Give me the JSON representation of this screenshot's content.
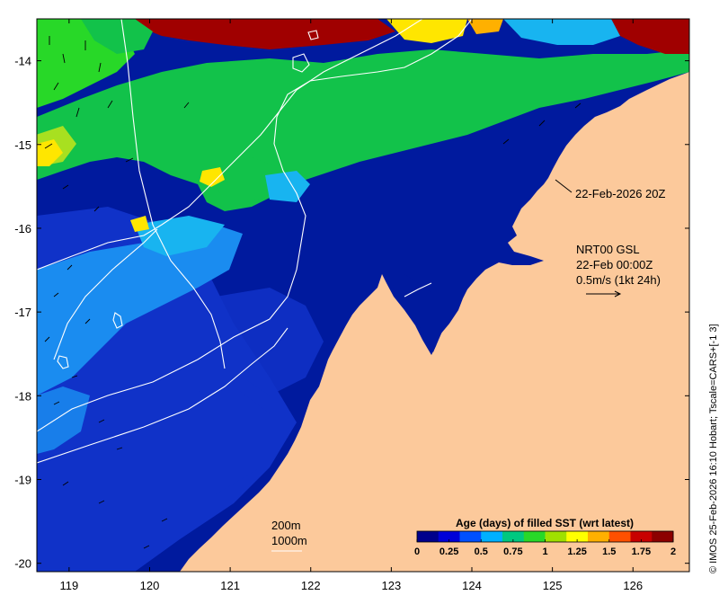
{
  "axes": {
    "x_ticks": [
      "119",
      "120",
      "121",
      "122",
      "123",
      "124",
      "125",
      "126"
    ],
    "x_tick_values": [
      119,
      120,
      121,
      122,
      123,
      124,
      125,
      126
    ],
    "y_ticks": [
      "-14",
      "-15",
      "-16",
      "-17",
      "-18",
      "-19",
      "-20"
    ],
    "y_tick_values": [
      -14,
      -15,
      -16,
      -17,
      -18,
      -19,
      -20
    ],
    "xlim": [
      118.6,
      126.7
    ],
    "ylim": [
      -20.1,
      -13.5
    ]
  },
  "annotations": {
    "timestamp": "22-Feb-2026 20Z",
    "current_title": "NRT00 GSL",
    "current_date": "22-Feb 00:00Z",
    "current_scale": "0.5m/s (1kt 24h)",
    "isobath_1": "200m",
    "isobath_2": "1000m"
  },
  "colorbar": {
    "title": "Age (days) of filled SST (wrt latest)",
    "ticks": [
      "0",
      "0.25",
      "0.5",
      "0.75",
      "1",
      "1.25",
      "1.5",
      "1.75",
      "2"
    ],
    "range": [
      0,
      2
    ],
    "colors": [
      "#00008c",
      "#0000d8",
      "#0050ff",
      "#00b0ff",
      "#00c880",
      "#28d828",
      "#a0e000",
      "#ffff00",
      "#ffb000",
      "#ff5000",
      "#c80000",
      "#8c0000"
    ]
  },
  "credit": "© IMOS 25-Feb-2026 16:10 Hobart; Tscale=CARS+[-1 3]",
  "colors": {
    "land": "#fcc99b",
    "deep_blue": "#001a9e",
    "mid_blue": "#1032c8",
    "light_blue": "#1a8cf0",
    "cyan": "#18b4f0",
    "green": "#12c24a",
    "yellow_green": "#a8e020",
    "yellow": "#ffe600",
    "dark_red": "#a00000",
    "isobath": "#ffffff"
  },
  "legend_icons": [
    "current-vector-icon",
    "isobath-line-icon"
  ]
}
